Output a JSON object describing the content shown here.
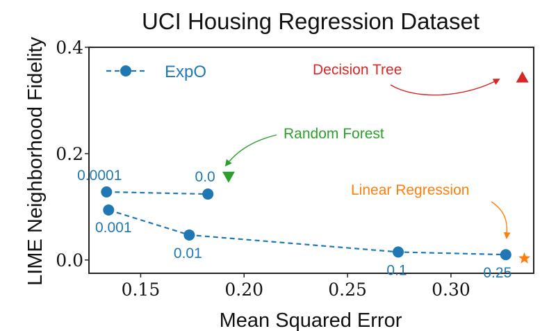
{
  "chart_data": {
    "type": "scatter",
    "title": "UCI Housing Regression Dataset",
    "xlabel": "Mean Squared Error",
    "ylabel": "LIME Neighborhood Fidelity",
    "xlim": [
      0.125,
      0.34
    ],
    "ylim": [
      -0.025,
      0.4
    ],
    "xticks": [
      "0.15",
      "0.20",
      "0.25",
      "0.30"
    ],
    "xtick_values": [
      0.15,
      0.2,
      0.25,
      0.3
    ],
    "yticks": [
      "0.0",
      "0.2",
      "0.4"
    ],
    "ytick_values": [
      0.0,
      0.2,
      0.4
    ],
    "grid": false,
    "legend": {
      "position": "top-left"
    },
    "series": [
      {
        "name": "ExpO",
        "color": "#1f77b4",
        "marker": "circle",
        "line": "dashed",
        "segments": [
          [
            {
              "x": 0.1335,
              "y": 0.128,
              "label": "0.0001"
            },
            {
              "x": 0.1825,
              "y": 0.124,
              "label": "0.0"
            }
          ],
          [
            {
              "x": 0.1345,
              "y": 0.094,
              "label": "0.001"
            },
            {
              "x": 0.1735,
              "y": 0.047,
              "label": "0.01"
            },
            {
              "x": 0.2745,
              "y": 0.015,
              "label": "0.1"
            },
            {
              "x": 0.3265,
              "y": 0.01,
              "label": "0.25"
            }
          ]
        ]
      }
    ],
    "baselines": [
      {
        "label": "Decision Tree",
        "x": 0.3345,
        "y": 0.343,
        "marker": "triangle-up",
        "color": "#d62728"
      },
      {
        "label": "Random Forest",
        "x": 0.1925,
        "y": 0.157,
        "marker": "triangle-down",
        "color": "#2ca02c"
      },
      {
        "label": "Linear Regression",
        "x": 0.3355,
        "y": 0.003,
        "marker": "star",
        "color": "#ff7f0e"
      }
    ]
  }
}
